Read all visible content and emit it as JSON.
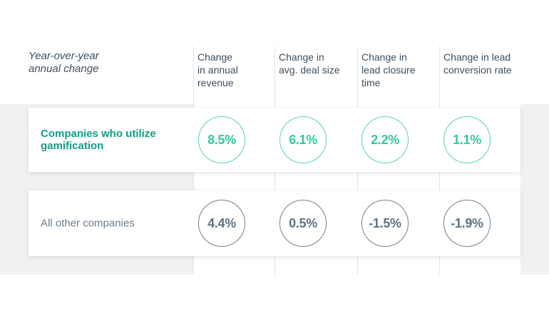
{
  "table": {
    "corner_label": "Year-over-year\nannual change",
    "columns": [
      {
        "label": "Change\nin annual\nrevenue"
      },
      {
        "label": "Change in\navg. deal size"
      },
      {
        "label": "Change in\nlead closure\ntime"
      },
      {
        "label": "Change in lead\nconversion rate"
      }
    ],
    "rows": [
      {
        "label": "Companies who utilize\ngamification",
        "values": [
          "8.5%",
          "6.1%",
          "2.2%",
          "1.1%"
        ]
      },
      {
        "label": "All other companies",
        "values": [
          "4.4%",
          "0.5%",
          "-1.5%",
          "-1.9%"
        ]
      }
    ]
  },
  "chart_data": {
    "type": "table",
    "title": "Year-over-year annual change",
    "categories": [
      "Change in annual revenue",
      "Change in avg. deal size",
      "Change in lead closure time",
      "Change in lead conversion rate"
    ],
    "series": [
      {
        "name": "Companies who utilize gamification",
        "values": [
          8.5,
          6.1,
          2.2,
          1.1
        ],
        "unit": "%"
      },
      {
        "name": "All other companies",
        "values": [
          4.4,
          0.5,
          -1.5,
          -1.9
        ],
        "unit": "%"
      }
    ],
    "layout": {
      "legend": "row labels at left",
      "grid": "column dividers only"
    }
  },
  "colors": {
    "teal_dark": "#0f9e87",
    "mint_text": "#2fcd96",
    "mint_stroke": "#55d8a8",
    "slate_dark": "#3d5060",
    "slate_mid": "#6b7d8d",
    "slate_text": "#5f7386",
    "slate_stroke": "#70818f",
    "divider": "#e3e3e5",
    "backdrop": "#f1f1f2"
  }
}
